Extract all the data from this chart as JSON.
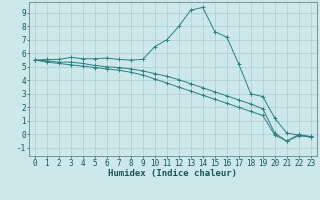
{
  "xlabel": "Humidex (Indice chaleur)",
  "background_color": "#cce8ea",
  "grid_color": "#aacccc",
  "line_color": "#2d7f7f",
  "xlim": [
    -0.5,
    23.5
  ],
  "ylim": [
    -1.6,
    9.8
  ],
  "yticks": [
    -1,
    0,
    1,
    2,
    3,
    4,
    5,
    6,
    7,
    8,
    9
  ],
  "xticks": [
    0,
    1,
    2,
    3,
    4,
    5,
    6,
    7,
    8,
    9,
    10,
    11,
    12,
    13,
    14,
    15,
    16,
    17,
    18,
    19,
    20,
    21,
    22,
    23
  ],
  "line1_x": [
    0,
    1,
    2,
    3,
    4,
    5,
    6,
    7,
    8,
    9,
    10,
    11,
    12,
    13,
    14,
    15,
    16,
    17,
    18,
    19,
    20,
    21,
    22,
    23
  ],
  "line1_y": [
    5.5,
    5.55,
    5.55,
    5.7,
    5.6,
    5.6,
    5.65,
    5.55,
    5.5,
    5.55,
    6.5,
    7.0,
    8.0,
    9.2,
    9.4,
    7.6,
    7.2,
    5.2,
    3.0,
    2.8,
    1.2,
    0.1,
    -0.05,
    -0.15
  ],
  "line2_x": [
    0,
    1,
    2,
    3,
    4,
    5,
    6,
    7,
    8,
    9,
    10,
    11,
    12,
    13,
    14,
    15,
    16,
    17,
    18,
    19,
    20,
    21,
    22,
    23
  ],
  "line2_y": [
    5.5,
    5.45,
    5.35,
    5.35,
    5.25,
    5.1,
    5.0,
    4.95,
    4.85,
    4.7,
    4.5,
    4.3,
    4.05,
    3.75,
    3.45,
    3.15,
    2.85,
    2.55,
    2.25,
    1.9,
    0.1,
    -0.5,
    -0.1,
    -0.2
  ],
  "line3_x": [
    0,
    1,
    2,
    3,
    4,
    5,
    6,
    7,
    8,
    9,
    10,
    11,
    12,
    13,
    14,
    15,
    16,
    17,
    18,
    19,
    20,
    21,
    22,
    23
  ],
  "line3_y": [
    5.5,
    5.35,
    5.25,
    5.15,
    5.05,
    4.95,
    4.85,
    4.75,
    4.6,
    4.4,
    4.1,
    3.8,
    3.5,
    3.2,
    2.9,
    2.6,
    2.3,
    2.0,
    1.7,
    1.4,
    -0.05,
    -0.5,
    0.0,
    -0.2
  ],
  "xlabel_fontsize": 6.5,
  "tick_fontsize": 5.5
}
